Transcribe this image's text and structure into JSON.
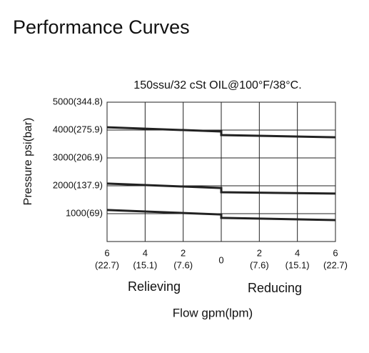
{
  "page_title": "Performance Curves",
  "chart_data": {
    "type": "line",
    "title": "150ssu/32 cSt OIL@100°F/38°C.",
    "ylabel": "Pressure psi(bar)",
    "xlabel": "Flow gpm(lpm)",
    "region_labels": [
      "Relieving",
      "Reducing"
    ],
    "x": [
      -6,
      0,
      0,
      6
    ],
    "xlim": [
      -6,
      6
    ],
    "xticks": [
      {
        "value": -6,
        "label": "6"
      },
      {
        "value": -4,
        "label": "4"
      },
      {
        "value": -2,
        "label": "2"
      },
      0,
      {
        "value": 2,
        "label": "2"
      },
      {
        "value": 4,
        "label": "4"
      },
      {
        "value": 6,
        "label": "6"
      }
    ],
    "xticks_lpm": [
      {
        "value": -6,
        "label": "(22.7)"
      },
      {
        "value": -4,
        "label": "(15.1)"
      },
      {
        "value": -2,
        "label": "(7.6)"
      },
      {
        "value": 2,
        "label": "(7.6)"
      },
      {
        "value": 4,
        "label": "(15.1)"
      },
      {
        "value": 6,
        "label": "(22.7)"
      }
    ],
    "ylim": [
      0,
      5000
    ],
    "yticks": [
      {
        "value": 1000,
        "label": "1000(69)"
      },
      {
        "value": 2000,
        "label": "2000(137.9)"
      },
      {
        "value": 3000,
        "label": "3000(206.9)"
      },
      {
        "value": 4000,
        "label": "4000(275.9)"
      },
      {
        "value": 5000,
        "label": "5000(344.8)"
      }
    ],
    "grid": true,
    "color": "#222222",
    "series": [
      {
        "values": [
          4100,
          3950,
          3820,
          3740
        ]
      },
      {
        "values": [
          2080,
          1920,
          1770,
          1720
        ]
      },
      {
        "values": [
          1130,
          970,
          850,
          770
        ]
      }
    ]
  }
}
